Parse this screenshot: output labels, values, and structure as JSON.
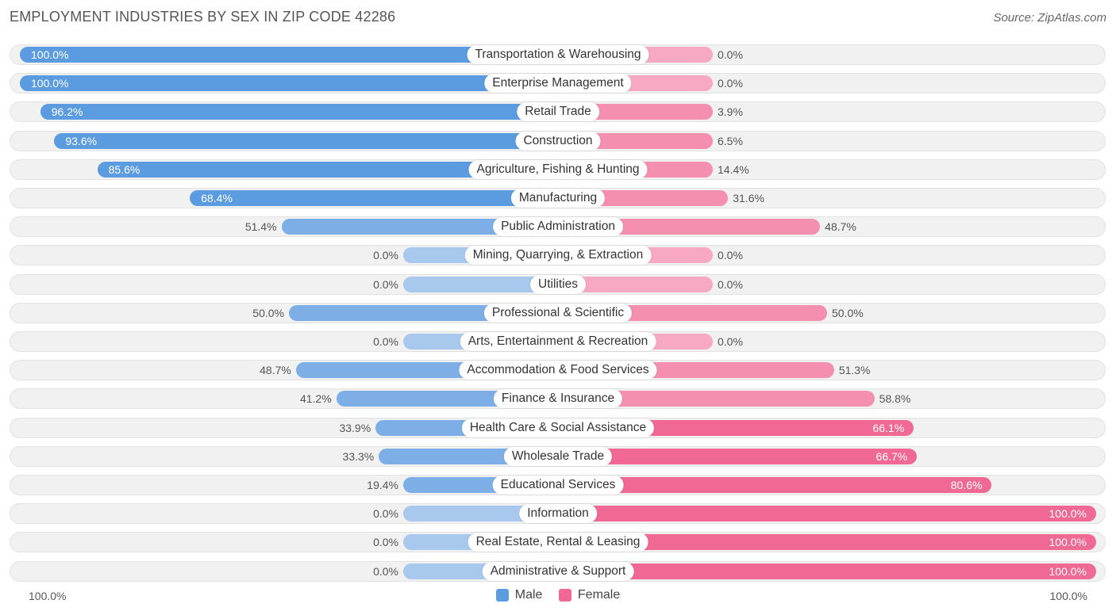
{
  "title": "EMPLOYMENT INDUSTRIES BY SEX IN ZIP CODE 42286",
  "source": "Source: ZipAtlas.com",
  "colors": {
    "male_strong": "#5b9be0",
    "male_light": "#a9c8ee",
    "female_strong": "#f06894",
    "female_light": "#f7a8c2"
  },
  "chart_data": {
    "type": "bar",
    "orientation": "horizontal-diverging",
    "title": "EMPLOYMENT INDUSTRIES BY SEX IN ZIP CODE 42286",
    "axis_left_label": "100.0%",
    "axis_right_label": "100.0%",
    "legend": [
      {
        "name": "Male",
        "color": "#5b9be0"
      },
      {
        "name": "Female",
        "color": "#f06894"
      }
    ],
    "categories": [
      "Transportation & Warehousing",
      "Enterprise Management",
      "Retail Trade",
      "Construction",
      "Agriculture, Fishing & Hunting",
      "Manufacturing",
      "Public Administration",
      "Mining, Quarrying, & Extraction",
      "Utilities",
      "Professional & Scientific",
      "Arts, Entertainment & Recreation",
      "Accommodation & Food Services",
      "Finance & Insurance",
      "Health Care & Social Assistance",
      "Wholesale Trade",
      "Educational Services",
      "Information",
      "Real Estate, Rental & Leasing",
      "Administrative & Support"
    ],
    "series": [
      {
        "name": "Male",
        "values": [
          100.0,
          100.0,
          96.2,
          93.6,
          85.6,
          68.4,
          51.4,
          0.0,
          0.0,
          50.0,
          0.0,
          48.7,
          41.2,
          33.9,
          33.3,
          19.4,
          0.0,
          0.0,
          0.0
        ],
        "labels": [
          "100.0%",
          "100.0%",
          "96.2%",
          "93.6%",
          "85.6%",
          "68.4%",
          "51.4%",
          "0.0%",
          "0.0%",
          "50.0%",
          "0.0%",
          "48.7%",
          "41.2%",
          "33.9%",
          "33.3%",
          "19.4%",
          "0.0%",
          "0.0%",
          "0.0%"
        ]
      },
      {
        "name": "Female",
        "values": [
          0.0,
          0.0,
          3.9,
          6.5,
          14.4,
          31.6,
          48.7,
          0.0,
          0.0,
          50.0,
          0.0,
          51.3,
          58.8,
          66.1,
          66.7,
          80.6,
          100.0,
          100.0,
          100.0
        ],
        "labels": [
          "0.0%",
          "0.0%",
          "3.9%",
          "6.5%",
          "14.4%",
          "31.6%",
          "48.7%",
          "0.0%",
          "0.0%",
          "50.0%",
          "0.0%",
          "51.3%",
          "58.8%",
          "66.1%",
          "66.7%",
          "80.6%",
          "100.0%",
          "100.0%",
          "100.0%"
        ]
      }
    ],
    "xlim": [
      0,
      100
    ]
  }
}
